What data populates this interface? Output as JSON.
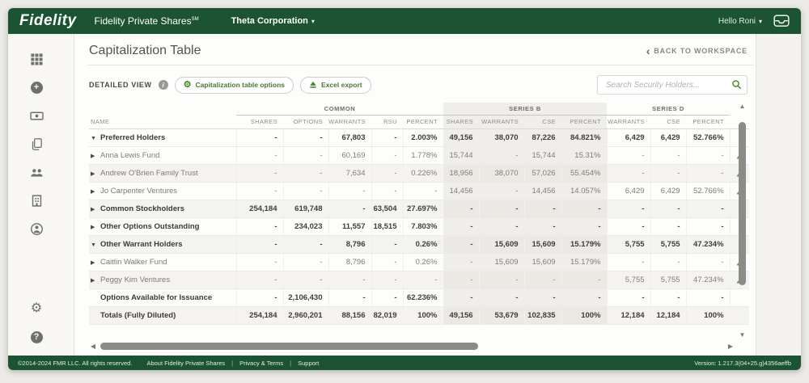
{
  "colors": {
    "brand_green": "#1c5433",
    "accent_green": "#3e8529",
    "holder_green": "#60a32d"
  },
  "topbar": {
    "logo": "Fidelity",
    "product": "Fidelity Private Shares",
    "product_mark": "SM",
    "company": "Theta Corporation",
    "greeting": "Hello Roni"
  },
  "sidebar": {
    "items": [
      {
        "icon": "grid-icon"
      },
      {
        "icon": "add-icon"
      },
      {
        "icon": "payments-icon"
      },
      {
        "icon": "documents-icon"
      },
      {
        "icon": "team-icon"
      },
      {
        "icon": "company-icon"
      },
      {
        "icon": "profile-icon"
      }
    ],
    "bottom_items": [
      {
        "icon": "settings-icon"
      },
      {
        "icon": "help-icon"
      }
    ]
  },
  "page": {
    "title": "Capitalization Table",
    "back_link": "BACK TO WORKSPACE",
    "view_label": "DETAILED VIEW",
    "options_button": "Capitalization table options",
    "export_button": "Excel export",
    "search_placeholder": "Search Security Holders..."
  },
  "table": {
    "name_column": "NAME",
    "groups": [
      {
        "label": "COMMON",
        "shaded": false,
        "columns": [
          "SHARES",
          "OPTIONS",
          "WARRANTS",
          "RSU",
          "PERCENT"
        ]
      },
      {
        "label": "SERIES B",
        "shaded": true,
        "columns": [
          "SHARES",
          "WARRANTS",
          "CSE",
          "PERCENT"
        ]
      },
      {
        "label": "SERIES D",
        "shaded": false,
        "columns": [
          "WARRANTS",
          "CSE",
          "PERCENT"
        ]
      }
    ],
    "rows": [
      {
        "name": "Preferred Holders",
        "level": 0,
        "bold": true,
        "arrow": "expanded",
        "holder_icon": false,
        "values": [
          "-",
          "-",
          "67,803",
          "-",
          "2.003%",
          "49,156",
          "38,070",
          "87,226",
          "84.821%",
          "6,429",
          "6,429",
          "52.766%"
        ]
      },
      {
        "name": "Anna Lewis Fund",
        "level": 1,
        "bold": false,
        "arrow": "collapsed",
        "holder_icon": true,
        "values": [
          "-",
          "-",
          "60,169",
          "-",
          "1.778%",
          "15,744",
          "-",
          "15,744",
          "15.31%",
          "-",
          "-",
          "-"
        ]
      },
      {
        "name": "Andrew O'Brien Family Trust",
        "level": 1,
        "bold": false,
        "arrow": "collapsed",
        "holder_icon": true,
        "values": [
          "-",
          "-",
          "7,634",
          "-",
          "0.226%",
          "18,956",
          "38,070",
          "57,026",
          "55.454%",
          "-",
          "-",
          "-"
        ]
      },
      {
        "name": "Jo Carpenter Ventures",
        "level": 1,
        "bold": false,
        "arrow": "collapsed",
        "holder_icon": true,
        "values": [
          "-",
          "-",
          "-",
          "-",
          "-",
          "14,456",
          "-",
          "14,456",
          "14.057%",
          "6,429",
          "6,429",
          "52.766%"
        ]
      },
      {
        "name": "Common Stockholders",
        "level": 0,
        "bold": true,
        "arrow": "collapsed",
        "holder_icon": false,
        "values": [
          "254,184",
          "619,748",
          "-",
          "63,504",
          "27.697%",
          "-",
          "-",
          "-",
          "-",
          "-",
          "-",
          "-"
        ]
      },
      {
        "name": "Other Options Outstanding",
        "level": 0,
        "bold": true,
        "arrow": "collapsed",
        "holder_icon": false,
        "values": [
          "-",
          "234,023",
          "11,557",
          "18,515",
          "7.803%",
          "-",
          "-",
          "-",
          "-",
          "-",
          "-",
          "-"
        ]
      },
      {
        "name": "Other Warrant Holders",
        "level": 0,
        "bold": true,
        "arrow": "expanded",
        "holder_icon": false,
        "values": [
          "-",
          "-",
          "8,796",
          "-",
          "0.26%",
          "-",
          "15,609",
          "15,609",
          "15.179%",
          "5,755",
          "5,755",
          "47.234%"
        ]
      },
      {
        "name": "Caitlin Walker Fund",
        "level": 1,
        "bold": false,
        "arrow": "collapsed",
        "holder_icon": true,
        "values": [
          "-",
          "-",
          "8,796",
          "-",
          "0.26%",
          "-",
          "15,609",
          "15,609",
          "15.179%",
          "-",
          "-",
          "-"
        ]
      },
      {
        "name": "Peggy Kim Ventures",
        "level": 1,
        "bold": false,
        "arrow": "collapsed",
        "holder_icon": true,
        "values": [
          "-",
          "-",
          "-",
          "-",
          "-",
          "-",
          "-",
          "-",
          "-",
          "5,755",
          "5,755",
          "47.234%"
        ]
      },
      {
        "name": "Options Available for Issuance",
        "level": 0,
        "bold": true,
        "arrow": "none",
        "holder_icon": false,
        "values": [
          "-",
          "2,106,430",
          "-",
          "-",
          "62.236%",
          "-",
          "-",
          "-",
          "-",
          "-",
          "-",
          "-"
        ]
      },
      {
        "name": "Totals (Fully Diluted)",
        "level": 0,
        "bold": true,
        "arrow": "none",
        "holder_icon": false,
        "values": [
          "254,184",
          "2,960,201",
          "88,156",
          "82,019",
          "100%",
          "49,156",
          "53,679",
          "102,835",
          "100%",
          "12,184",
          "12,184",
          "100%"
        ]
      }
    ]
  },
  "footer": {
    "copyright": "©2014-2024 FMR LLC. All rights reserved.",
    "links": [
      "About Fidelity Private Shares",
      "Privacy & Terms",
      "Support"
    ],
    "version": "Version: 1.217.3(04+25.g)4356aeffb"
  }
}
